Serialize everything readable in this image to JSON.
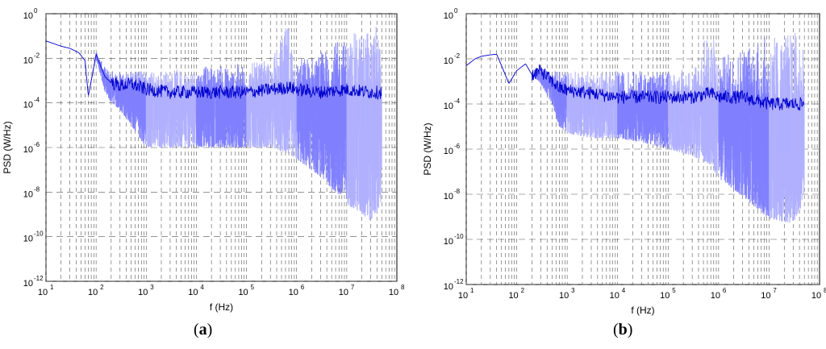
{
  "chart_data": [
    {
      "type": "line",
      "panel_label": "a",
      "xlabel": "f (Hz)",
      "ylabel": "PSD (W/Hz)",
      "xscale": "log",
      "yscale": "log",
      "xlim": [
        10,
        100000000
      ],
      "ylim": [
        1e-12,
        1
      ],
      "x_tick_bases": [
        "10",
        "10",
        "10",
        "10",
        "10",
        "10",
        "10",
        "10"
      ],
      "x_tick_exps": [
        "1",
        "2",
        "3",
        "4",
        "5",
        "6",
        "7",
        "8"
      ],
      "y_tick_bases": [
        "10",
        "10",
        "10",
        "10",
        "10",
        "10",
        "10"
      ],
      "y_tick_exps": [
        "-12",
        "-10",
        "-8",
        "-6",
        "-4",
        "-2",
        "0"
      ],
      "grid": "on (dashed)",
      "series": [
        {
          "color": "#0000cc",
          "x": [
            10,
            20,
            30,
            45,
            60,
            70,
            100,
            150,
            200,
            300,
            500,
            1000,
            3000,
            10000,
            30000,
            100000,
            300000,
            700000,
            1000000,
            3000000,
            10000000,
            30000000,
            50000000
          ],
          "y": [
            0.06,
            0.035,
            0.028,
            0.018,
            0.008,
            0.0002,
            0.015,
            0.0015,
            0.0008,
            0.0006,
            0.0007,
            0.0004,
            0.0003,
            0.0003,
            0.0003,
            0.0003,
            0.0004,
            0.0005,
            0.0004,
            0.0003,
            0.0004,
            0.0003,
            0.0003
          ],
          "band_low": [
            0.06,
            0.035,
            0.028,
            0.018,
            0.008,
            0.0002,
            0.01,
            0.0003,
            0.0001,
            5e-05,
            1e-05,
            1e-06,
            1e-06,
            1e-06,
            1e-06,
            1e-06,
            1e-06,
            5e-07,
            3e-07,
            5e-08,
            3e-09,
            5e-10,
            3e-09
          ],
          "band_high": [
            0.06,
            0.035,
            0.028,
            0.018,
            0.008,
            0.0002,
            0.02,
            0.004,
            0.003,
            0.003,
            0.003,
            0.003,
            0.003,
            0.004,
            0.005,
            0.006,
            0.008,
            0.5,
            0.01,
            0.02,
            0.1,
            0.3,
            0.3
          ]
        }
      ]
    },
    {
      "type": "line",
      "panel_label": "b",
      "xlabel": "f (Hz)",
      "ylabel": "PSD (W/Hz)",
      "xscale": "log",
      "yscale": "log",
      "xlim": [
        10,
        100000000
      ],
      "ylim": [
        1e-12,
        1
      ],
      "x_tick_bases": [
        "10",
        "10",
        "10",
        "10",
        "10",
        "10",
        "10",
        "10"
      ],
      "x_tick_exps": [
        "1",
        "2",
        "3",
        "4",
        "5",
        "6",
        "7",
        "8"
      ],
      "y_tick_bases": [
        "10",
        "10",
        "10",
        "10",
        "10",
        "10",
        "10"
      ],
      "y_tick_exps": [
        "-12",
        "-10",
        "-8",
        "-6",
        "-4",
        "-2",
        "0"
      ],
      "grid": "on (dashed)",
      "series": [
        {
          "color": "#0000cc",
          "x": [
            10,
            15,
            20,
            30,
            40,
            50,
            70,
            100,
            150,
            200,
            300,
            500,
            700,
            1000,
            3000,
            10000,
            30000,
            100000,
            300000,
            700000,
            1000000,
            3000000,
            10000000,
            30000000,
            50000000
          ],
          "y": [
            0.005,
            0.01,
            0.013,
            0.015,
            0.016,
            0.005,
            0.0008,
            0.003,
            0.006,
            0.002,
            0.003,
            0.001,
            0.0005,
            0.0004,
            0.0003,
            0.0002,
            0.0002,
            0.0002,
            0.0002,
            0.0003,
            0.0002,
            0.0002,
            0.0001,
            0.0001,
            0.0001
          ],
          "band_low": [
            0.005,
            0.01,
            0.013,
            0.015,
            0.016,
            0.005,
            0.0008,
            0.003,
            0.006,
            0.002,
            0.0008,
            0.0001,
            1e-05,
            5e-06,
            3e-06,
            3e-06,
            2e-06,
            1e-06,
            5e-07,
            2e-07,
            5e-08,
            8e-09,
            8e-10,
            5e-10,
            5e-09
          ],
          "band_high": [
            0.005,
            0.01,
            0.013,
            0.015,
            0.016,
            0.005,
            0.0008,
            0.003,
            0.006,
            0.002,
            0.004,
            0.003,
            0.003,
            0.003,
            0.003,
            0.003,
            0.003,
            0.003,
            0.004,
            0.4,
            0.01,
            0.05,
            0.1,
            0.2,
            0.1
          ]
        }
      ]
    }
  ]
}
